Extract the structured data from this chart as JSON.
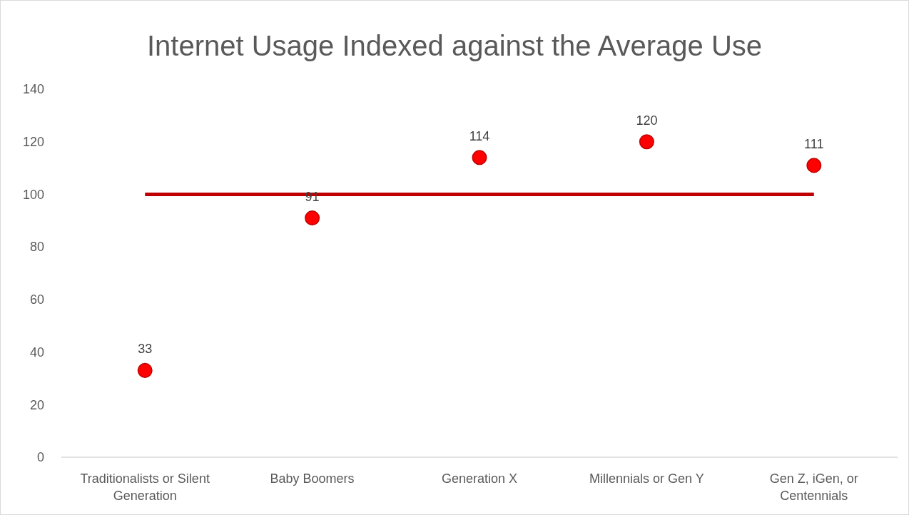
{
  "chart_data": {
    "type": "scatter",
    "title": "Internet Usage Indexed against the Average Use",
    "categories": [
      "Traditionalists or Silent Generation",
      "Baby Boomers",
      "Generation X",
      "Millennials or Gen Y",
      "Gen Z, iGen, or Centennials"
    ],
    "series": [
      {
        "type": "line",
        "color": "#c00000",
        "values": [
          100,
          100,
          100,
          100,
          100
        ],
        "marker": "none"
      },
      {
        "color": "#ff0000",
        "values": [
          33,
          91,
          114,
          120,
          111
        ],
        "marker": "circle",
        "value_labels": [
          "33",
          "91",
          "114",
          "120",
          "111"
        ]
      }
    ],
    "ylim": [
      0,
      140
    ],
    "yticks": [
      0,
      20,
      40,
      60,
      80,
      100,
      120,
      140
    ],
    "grid": false
  }
}
